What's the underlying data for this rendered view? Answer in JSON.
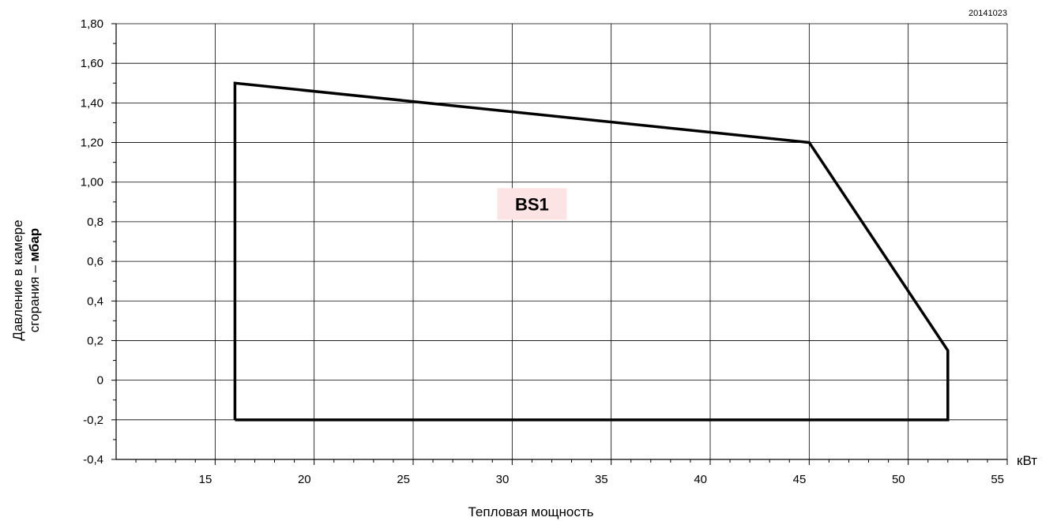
{
  "chart_data": {
    "type": "line",
    "doc_code": "20141023",
    "xlabel": "Тепловая мощность",
    "x_unit": "кВт",
    "ylabel_line1": "Давление в камере",
    "ylabel_line2_prefix": "сгорания – ",
    "ylabel_unit": "мбар",
    "xlim": [
      10,
      55
    ],
    "ylim": [
      -0.4,
      1.8
    ],
    "x_ticks": [
      15,
      20,
      25,
      30,
      35,
      40,
      45,
      50,
      55
    ],
    "x_tick_labels": [
      "15",
      "20",
      "25",
      "30",
      "35",
      "40",
      "45",
      "50",
      "55"
    ],
    "y_ticks": [
      -0.4,
      -0.2,
      0,
      0.2,
      0.4,
      0.6,
      0.8,
      1.0,
      1.2,
      1.4,
      1.6,
      1.8
    ],
    "y_tick_labels": [
      "-0,4",
      "-0,2",
      "0",
      "0,2",
      "0,4",
      "0,6",
      "0,8",
      "1,00",
      "1,20",
      "1,40",
      "1,60",
      "1,80"
    ],
    "grid": true,
    "series": [
      {
        "name": "BS1",
        "closed": true,
        "x": [
          16,
          16,
          45,
          52,
          52,
          16
        ],
        "y": [
          -0.2,
          1.5,
          1.2,
          0.15,
          -0.2,
          -0.2
        ]
      }
    ],
    "annotations": [
      {
        "text": "BS1",
        "x": 31,
        "y": 0.89,
        "background": "#fde4e4"
      }
    ],
    "colors": {
      "line": "#000000",
      "grid": "#000000",
      "label_background": "#fde4e4"
    }
  }
}
